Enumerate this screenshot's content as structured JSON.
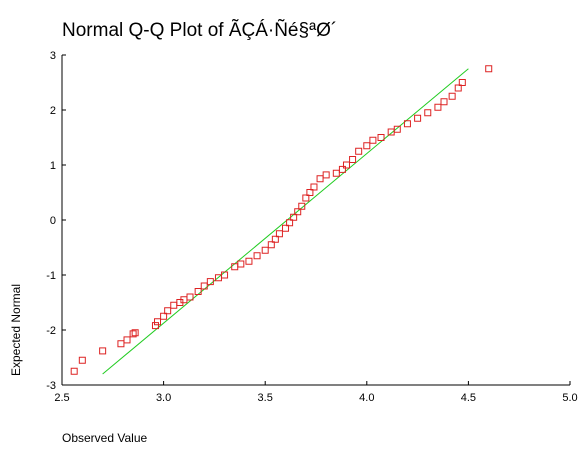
{
  "chart_data": {
    "type": "scatter",
    "title": "Normal Q-Q Plot of ÃÇÁ·Ñé§ªØ´",
    "x_label": "Observed Value",
    "y_label": "Expected Normal",
    "xlim": [
      2.5,
      5.0
    ],
    "ylim": [
      -3,
      3
    ],
    "xticks": [
      2.5,
      {
        "value": 3.0,
        "label": "3.0"
      },
      3.5,
      {
        "value": 4.0,
        "label": "4.0"
      },
      4.5,
      {
        "value": 5.0,
        "label": "5.0"
      }
    ],
    "yticks": [
      -3,
      -2,
      -1,
      0,
      1,
      2,
      3
    ],
    "points": {
      "color": "#dd2222",
      "x": [
        2.56,
        2.6,
        2.7,
        2.79,
        2.82,
        2.85,
        2.86,
        2.96,
        2.97,
        3.0,
        3.02,
        3.05,
        3.08,
        3.1,
        3.13,
        3.17,
        3.2,
        3.23,
        3.27,
        3.3,
        3.35,
        3.38,
        3.42,
        3.46,
        3.5,
        3.53,
        3.55,
        3.57,
        3.6,
        3.62,
        3.64,
        3.66,
        3.68,
        3.7,
        3.72,
        3.74,
        3.77,
        3.8,
        3.85,
        3.88,
        3.9,
        3.93,
        3.96,
        4.0,
        4.03,
        4.07,
        4.12,
        4.15,
        4.2,
        4.25,
        4.3,
        4.35,
        4.38,
        4.42,
        4.45,
        4.47,
        4.6
      ],
      "values": [
        -2.75,
        -2.55,
        -2.38,
        -2.25,
        -2.18,
        -2.07,
        -2.05,
        -1.92,
        -1.85,
        -1.75,
        -1.65,
        -1.55,
        -1.5,
        -1.45,
        -1.4,
        -1.3,
        -1.2,
        -1.12,
        -1.05,
        -1.0,
        -0.85,
        -0.8,
        -0.75,
        -0.65,
        -0.55,
        -0.45,
        -0.35,
        -0.25,
        -0.15,
        -0.05,
        0.05,
        0.15,
        0.25,
        0.4,
        0.5,
        0.6,
        0.75,
        0.82,
        0.85,
        0.92,
        1.0,
        1.1,
        1.25,
        1.35,
        1.45,
        1.5,
        1.6,
        1.65,
        1.75,
        1.85,
        1.95,
        2.05,
        2.15,
        2.25,
        2.4,
        2.5,
        2.75
      ]
    },
    "reference_line": {
      "color": "#22cc22",
      "x": [
        2.7,
        4.5
      ],
      "values": [
        -2.8,
        2.75
      ]
    }
  }
}
